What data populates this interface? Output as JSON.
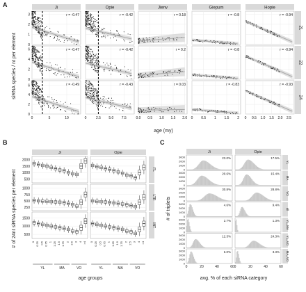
{
  "chart_data": [
    {
      "panel": "A",
      "type": "scatter",
      "ylabel": "siRNA species / nt per element",
      "xlabel": "age (my)",
      "columns": [
        "Ji",
        "Opie",
        "Jienv",
        "Giepum",
        "Hopie"
      ],
      "rows": [
        "21",
        "22",
        "24"
      ],
      "x_ticks": [
        [
          "0",
          "5",
          "10"
        ],
        [
          "0",
          "2.5",
          "5.0",
          "7.5"
        ],
        [
          "0.0",
          "0.5",
          "1.0",
          "1.5",
          "2.0"
        ],
        [
          "0",
          "0.5",
          "1",
          "1.5",
          "2"
        ],
        [
          "0",
          "0.5",
          "1.0",
          "1.5",
          "2.0",
          "2.5"
        ]
      ],
      "x_ranges": [
        [
          0,
          14
        ],
        [
          0,
          9.5
        ],
        [
          0,
          2.1
        ],
        [
          0,
          2.1
        ],
        [
          0,
          2.8
        ]
      ],
      "y_ticks": [
        [
          "0",
          "1",
          "2",
          "3"
        ],
        [
          "0",
          "2",
          "4",
          "6"
        ],
        [
          "0",
          "2",
          "4",
          "6"
        ]
      ],
      "y_ranges": [
        [
          0,
          3.3
        ],
        [
          0,
          6.6
        ],
        [
          0,
          6.9
        ]
      ],
      "cutoff_age": [
        3,
        2.5,
        null,
        null,
        null
      ],
      "r_values": [
        [
          "r = -0.47",
          "r = -0.42",
          "r = 0.18",
          "r = -0.8",
          "r = -0.94"
        ],
        [
          "r = -0.47",
          "r = -0.42",
          "r = 0.2",
          "r = -0.8",
          "r = -0.94"
        ],
        [
          "r = -0.49",
          "r = -0.43",
          "r = 0.03",
          "r = -0.83",
          "r = -0.93"
        ]
      ],
      "trend_lines": [
        [
          [
            [
              0,
              1.7
            ],
            [
              13.5,
              0.25
            ]
          ],
          [
            [
              0,
              1.6
            ],
            [
              9,
              0.55
            ]
          ],
          [
            [
              0,
              0.35
            ],
            [
              2,
              0.7
            ]
          ],
          [
            [
              0,
              0.45
            ],
            [
              2,
              0.05
            ]
          ],
          [
            [
              0,
              2.3
            ],
            [
              2.7,
              0.25
            ]
          ]
        ],
        [
          [
            [
              0,
              3.4
            ],
            [
              13.5,
              0.5
            ]
          ],
          [
            [
              0,
              3.2
            ],
            [
              9,
              1.1
            ]
          ],
          [
            [
              0,
              0.75
            ],
            [
              2,
              1.5
            ]
          ],
          [
            [
              0,
              0.9
            ],
            [
              2,
              0.1
            ]
          ],
          [
            [
              0,
              4.6
            ],
            [
              2.7,
              0.5
            ]
          ]
        ],
        [
          [
            [
              0,
              3.6
            ],
            [
              13.5,
              0.5
            ]
          ],
          [
            [
              0,
              3.4
            ],
            [
              9,
              1.2
            ]
          ],
          [
            [
              0,
              0.8
            ],
            [
              2,
              0.95
            ]
          ],
          [
            [
              0,
              0.95
            ],
            [
              2,
              0.1
            ]
          ],
          [
            [
              0,
              4.8
            ],
            [
              2.7,
              0.55
            ]
          ]
        ]
      ]
    },
    {
      "panel": "B",
      "type": "boxplot",
      "ylabel": "# of 24nt siRNA species per element",
      "xlabel": "age groups",
      "columns": [
        "Ji",
        "Opie"
      ],
      "rows": [
        "FL",
        "LTR",
        "INT"
      ],
      "categories": [
        "0",
        "0-0.25",
        "0.25-0.5",
        "0.5-0.75",
        "0.75-1",
        "1-1.25",
        "1.25-1.5",
        "1.5-1.75",
        "1.75-2",
        "2-2.5",
        "2.5-3",
        "3-4",
        ">4"
      ],
      "age_group_labels": [
        "YL",
        "MA",
        "VO"
      ],
      "age_group_spans": [
        [
          0,
          4
        ],
        [
          5,
          8
        ],
        [
          9,
          12
        ]
      ],
      "x_tick_labels": [
        "0",
        "0.25",
        "0.5",
        "0.75",
        "1",
        "1.25",
        "1.5",
        "1.75",
        "2",
        "2.5",
        "3",
        "4",
        ">4"
      ],
      "y_ticks": [
        [
          "500",
          "1000",
          "1500",
          "2000"
        ],
        [
          "250",
          "500",
          "750",
          "1000"
        ],
        [
          "500",
          "1000",
          "1500"
        ]
      ],
      "y_ranges": [
        [
          200,
          2250
        ],
        [
          120,
          1150
        ],
        [
          250,
          1850
        ]
      ],
      "series": [
        {
          "name": "Ji",
          "row": "FL",
          "medians": [
            1700,
            1620,
            1550,
            1500,
            1400,
            1300,
            1200,
            1150,
            1000,
            900,
            850,
            1500,
            1900
          ]
        },
        {
          "name": "Opie",
          "row": "FL",
          "medians": [
            1550,
            1450,
            1400,
            1300,
            1250,
            1150,
            1050,
            950,
            800,
            750,
            600,
            1000,
            1400
          ]
        },
        {
          "name": "Ji",
          "row": "LTR",
          "medians": [
            520,
            500,
            490,
            480,
            470,
            460,
            450,
            430,
            400,
            360,
            300,
            450,
            750
          ]
        },
        {
          "name": "Opie",
          "row": "LTR",
          "medians": [
            500,
            480,
            470,
            460,
            440,
            420,
            400,
            380,
            350,
            320,
            280,
            450,
            650
          ]
        },
        {
          "name": "Ji",
          "row": "INT",
          "medians": [
            1200,
            1150,
            1100,
            1050,
            1000,
            950,
            900,
            850,
            800,
            700,
            650,
            900,
            1300
          ]
        },
        {
          "name": "Opie",
          "row": "INT",
          "medians": [
            1150,
            1100,
            1050,
            1000,
            950,
            900,
            850,
            800,
            700,
            650,
            550,
            800,
            1150
          ]
        }
      ]
    },
    {
      "panel": "C",
      "type": "histogram",
      "ylabel": "# of triplets",
      "xlabel": "avg. % of each siRNA category",
      "columns": [
        "Ji",
        "Opie"
      ],
      "rows": [
        "YL",
        "MA",
        "VO",
        "all",
        "YL_MA",
        "YL_VO",
        "MA_VO"
      ],
      "x_ticks": [
        "0",
        "20",
        "40",
        "60"
      ],
      "x_range": [
        0,
        60
      ],
      "y_ticks": [
        "0",
        "1000",
        "2000",
        "3000"
      ],
      "y_range": [
        0,
        3500
      ],
      "percentages": [
        [
          "23.0%",
          "17.5%"
        ],
        [
          "20.6%",
          "15.4%"
        ],
        [
          "30.8%",
          "28.8%"
        ],
        [
          "4.6%",
          "9.4%"
        ],
        [
          "2.7%",
          "1.3%"
        ],
        [
          "12.3%",
          "24.3%"
        ],
        [
          "6.0%",
          "3.3%"
        ]
      ],
      "peak_x": [
        [
          22,
          17
        ],
        [
          20,
          15
        ],
        [
          30,
          28
        ],
        [
          5,
          9
        ],
        [
          2,
          1
        ],
        [
          12,
          24
        ],
        [
          6,
          3
        ]
      ],
      "peak_height": [
        [
          2200,
          2400
        ],
        [
          2300,
          2600
        ],
        [
          1800,
          2000
        ],
        [
          3000,
          2300
        ],
        [
          3300,
          3300
        ],
        [
          2100,
          1700
        ],
        [
          2900,
          3100
        ]
      ],
      "peak_width": [
        [
          7,
          6
        ],
        [
          7,
          5
        ],
        [
          8,
          7
        ],
        [
          2.5,
          3
        ],
        [
          1.5,
          1
        ],
        [
          4,
          6
        ],
        [
          2.5,
          1.5
        ]
      ]
    }
  ],
  "panel_labels": [
    "A",
    "B",
    "C"
  ],
  "colors": {
    "strip_fill": "#d9d9d9",
    "panel_bg": "#ffffff",
    "grid": "#ebebeb",
    "points": "#111111",
    "trend_line": "#aaaaaa",
    "ribbon": "#cccccc",
    "histogram_fill": "#c8c8c8",
    "box_line": "#333333",
    "frame": "#888888",
    "text": "#222222"
  }
}
